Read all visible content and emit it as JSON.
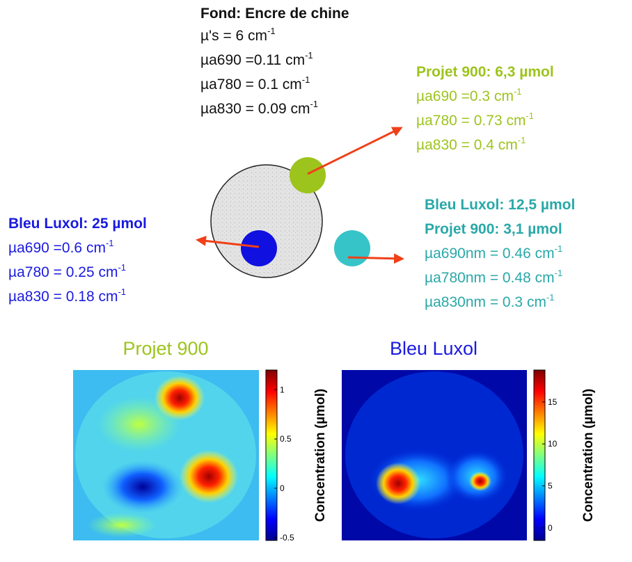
{
  "background": {
    "title": "Fond: Encre de chine",
    "lines": [
      {
        "text": "µ's = 6 cm",
        "sup": "-1"
      },
      {
        "text": "µa690 =0.11 cm",
        "sup": "-1"
      },
      {
        "text": "µa780 = 0.1 cm",
        "sup": "-1"
      },
      {
        "text": "µa830 = 0.09 cm",
        "sup": "-1"
      }
    ]
  },
  "inclusions": [
    {
      "color": "#9dc41c",
      "headings": [
        "Projet 900: 6,3 µmol"
      ],
      "lines": [
        {
          "text": "µa690 =0.3 cm",
          "sup": "-1"
        },
        {
          "text": "µa780 = 0.73 cm",
          "sup": "-1"
        },
        {
          "text": "µa830 = 0.4 cm",
          "sup": "-1"
        }
      ]
    },
    {
      "color": "#1a1ae0",
      "headings": [
        "Bleu Luxol: 25 µmol"
      ],
      "lines": [
        {
          "text": "µa690 =0.6 cm",
          "sup": "-1"
        },
        {
          "text": "µa780 = 0.25 cm",
          "sup": "-1"
        },
        {
          "text": "µa830 = 0.18 cm",
          "sup": "-1"
        }
      ]
    },
    {
      "color": "#2aa8a8",
      "headings": [
        "Bleu Luxol: 12,5 µmol",
        "Projet 900: 3,1 µmol"
      ],
      "lines": [
        {
          "text": "µa690nm = 0.46 cm",
          "sup": "-1"
        },
        {
          "text": "µa780nm = 0.48 cm",
          "sup": "-1"
        },
        {
          "text": "µa830nm = 0.3 cm",
          "sup": "-1"
        }
      ]
    }
  ],
  "maps": [
    {
      "title": "Projet 900",
      "title_color": "#9dc41c",
      "colorbar_label": "Concentration (µmol)",
      "clim": [
        -0.53,
        1.2
      ],
      "ticks": [
        1,
        0.5,
        0,
        -0.5
      ]
    },
    {
      "title": "Bleu Luxol",
      "title_color": "#1a1ae0",
      "colorbar_label": "Concentration (µmol)",
      "clim": [
        -1.5,
        18.8
      ],
      "ticks": [
        15,
        10,
        5,
        0
      ]
    }
  ]
}
